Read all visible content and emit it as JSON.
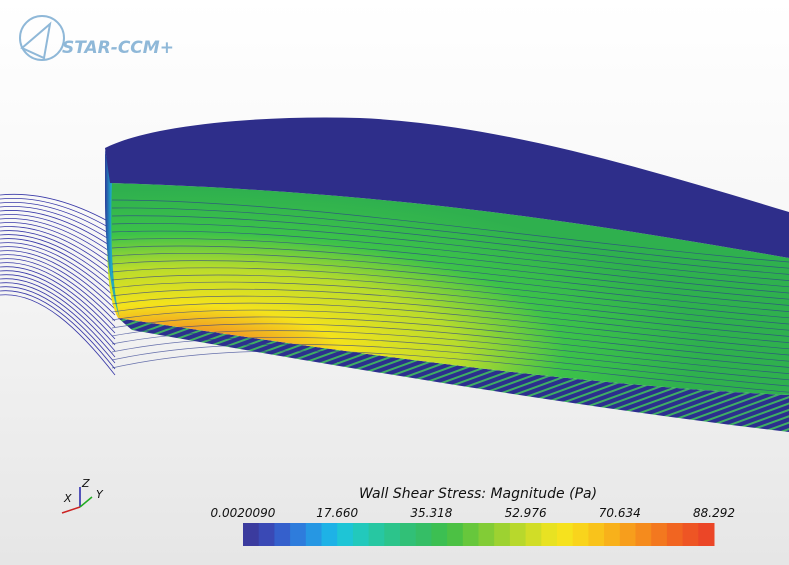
{
  "logo": {
    "text": "STAR-CCM+"
  },
  "triad": {
    "x": "X",
    "y": "Y",
    "z": "Z"
  },
  "legend": {
    "title": "Wall Shear Stress: Magnitude (Pa)",
    "ticks": [
      "0.0020090",
      "17.660",
      "35.318",
      "52.976",
      "70.634",
      "88.292"
    ]
  }
}
